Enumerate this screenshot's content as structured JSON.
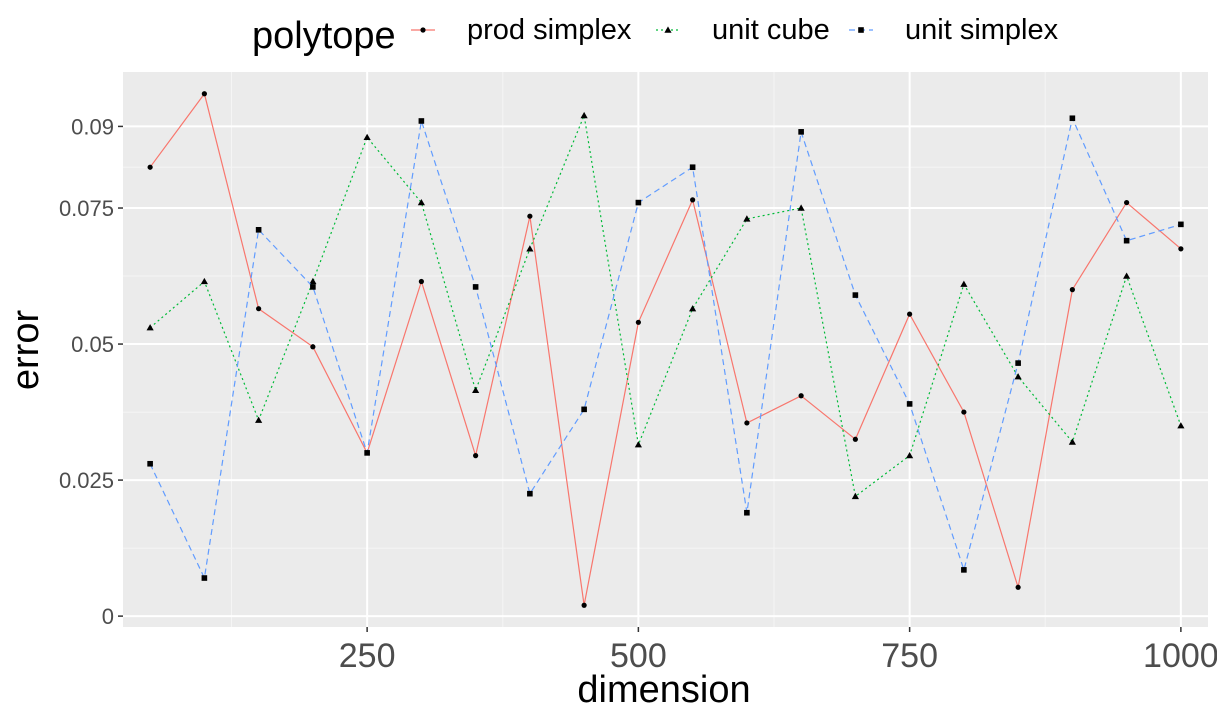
{
  "chart_data": {
    "type": "line",
    "title": "",
    "xlabel": "dimension",
    "ylabel": "error",
    "xlim": [
      25,
      1025
    ],
    "ylim": [
      -0.002,
      0.1
    ],
    "xticks": [
      250,
      500,
      750,
      1000
    ],
    "xtick_labels": [
      "250",
      "500",
      "750",
      "1000"
    ],
    "yticks": [
      0,
      0.025,
      0.05,
      0.075,
      0.09
    ],
    "ytick_labels": [
      "0",
      "0.025",
      "0.05",
      "0.075",
      "0.09"
    ],
    "grid": true,
    "legend": {
      "title": "polytope",
      "placement": "top"
    },
    "x": [
      50,
      100,
      150,
      200,
      250,
      300,
      350,
      400,
      450,
      500,
      550,
      600,
      650,
      700,
      750,
      800,
      850,
      900,
      950,
      1000
    ],
    "series": [
      {
        "name": "prod simplex",
        "color": "#F8766D",
        "dash": "solid",
        "marker": "circle",
        "values": [
          0.0825,
          0.096,
          0.0565,
          0.0495,
          0.03,
          0.0615,
          0.0295,
          0.0735,
          0.002,
          0.054,
          0.0765,
          0.0355,
          0.0405,
          0.0325,
          0.0555,
          0.0375,
          0.0053,
          0.06,
          0.076,
          0.0675
        ]
      },
      {
        "name": "unit cube",
        "color": "#00BA38",
        "dash": "dotted",
        "marker": "triangle",
        "values": [
          0.053,
          0.0615,
          0.036,
          0.0615,
          0.088,
          0.076,
          0.0415,
          0.0675,
          0.092,
          0.0315,
          0.0565,
          0.073,
          0.075,
          0.022,
          0.0295,
          0.061,
          0.044,
          0.032,
          0.0625,
          0.035
        ]
      },
      {
        "name": "unit simplex",
        "color": "#619CFF",
        "dash": "dashed",
        "marker": "square",
        "values": [
          0.028,
          0.007,
          0.071,
          0.0605,
          0.03,
          0.091,
          0.0605,
          0.0225,
          0.038,
          0.076,
          0.0825,
          0.019,
          0.089,
          0.059,
          0.039,
          0.0085,
          0.0465,
          0.0915,
          0.069,
          0.072
        ]
      }
    ]
  }
}
